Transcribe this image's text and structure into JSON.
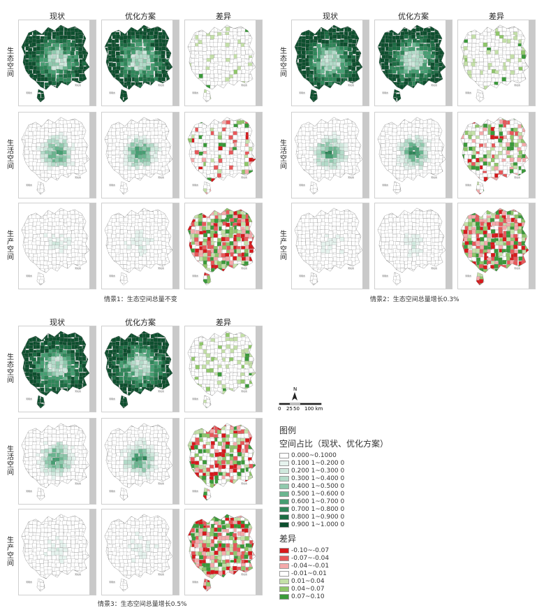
{
  "groups": [
    {
      "caption": "情景1：生态空间总量不变",
      "columns": [
        "现状",
        "优化方案",
        "差异"
      ],
      "rows": [
        "生态空间",
        "生活空间",
        "生产空间"
      ],
      "diff_intensity": [
        0.1,
        0.25,
        1.0
      ]
    },
    {
      "caption": "情景2：生态空间总量增长0.3%",
      "columns": [
        "现状",
        "优化方案",
        "差异"
      ],
      "rows": [
        "生态空间",
        "生活空间",
        "生产空间"
      ],
      "diff_intensity": [
        0.15,
        0.55,
        1.0
      ]
    },
    {
      "caption": "情景3：生态空间总量增长0.5%",
      "columns": [
        "现状",
        "优化方案",
        "差异"
      ],
      "rows": [
        "生态空间",
        "生活空间",
        "生产空间"
      ],
      "diff_intensity": [
        0.2,
        0.65,
        1.0
      ]
    }
  ],
  "map_labels": [
    "河南省",
    "河北省"
  ],
  "north_label": "N",
  "scale_ticks": [
    "0",
    "25",
    "50",
    "100 km"
  ],
  "legend": {
    "title": "图例",
    "ratio_title": "空间占比（现状、优化方案）",
    "ratio_items": [
      {
        "label": "0.000~0.1000",
        "color": "#ffffff"
      },
      {
        "label": "0.100 1~0.200 0",
        "color": "#e6f3ee"
      },
      {
        "label": "0.200 1~0.300 0",
        "color": "#cfe8dd"
      },
      {
        "label": "0.300 1~0.400 0",
        "color": "#b3dbc9"
      },
      {
        "label": "0.400 1~0.500 0",
        "color": "#8fc9ad"
      },
      {
        "label": "0.500 1~0.600 0",
        "color": "#6ab690"
      },
      {
        "label": "0.600 1~0.700 0",
        "color": "#469e72"
      },
      {
        "label": "0.700 1~0.800 0",
        "color": "#2f8659"
      },
      {
        "label": "0.800 1~0.900 0",
        "color": "#1c6c43"
      },
      {
        "label": "0.900 1~1.000 0",
        "color": "#0d4f2e"
      }
    ],
    "diff_title": "差异",
    "diff_items": [
      {
        "label": "-0.10~-0.07",
        "color": "#d7191c"
      },
      {
        "label": "-0.07~-0.04",
        "color": "#e8585a"
      },
      {
        "label": "-0.04~-0.01",
        "color": "#f4a9aa"
      },
      {
        "label": "-0.01~0.01",
        "color": "#ffffff"
      },
      {
        "label": "0.01~0.04",
        "color": "#c4e0a8"
      },
      {
        "label": "0.04~0.07",
        "color": "#8fc76a"
      },
      {
        "label": "0.07~0.10",
        "color": "#3a9a3a"
      }
    ]
  }
}
